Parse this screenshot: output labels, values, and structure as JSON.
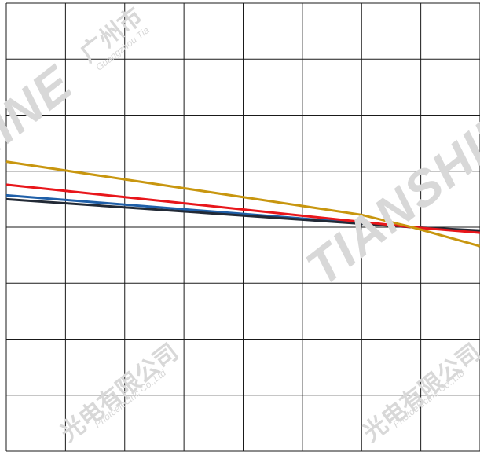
{
  "chart_data": {
    "type": "line",
    "title": "",
    "xlabel": "",
    "ylabel": "",
    "grid": true,
    "xlim": [
      0,
      8
    ],
    "ylim": [
      0,
      8
    ],
    "series": [
      {
        "color": "#1f5fa8",
        "x": [
          0,
          6.85,
          8
        ],
        "y": [
          4.57,
          4.0,
          3.92
        ]
      },
      {
        "color": "#222a36",
        "x": [
          0,
          6.85,
          8
        ],
        "y": [
          4.5,
          4.0,
          3.94
        ]
      },
      {
        "color": "#e8161b",
        "x": [
          0,
          6.85,
          8
        ],
        "y": [
          4.76,
          4.0,
          3.9
        ]
      },
      {
        "color": "#c8960f",
        "x": [
          0,
          6.0,
          6.85,
          8
        ],
        "y": [
          5.17,
          4.22,
          4.0,
          3.66
        ]
      }
    ]
  },
  "watermarks": {
    "brand": "TIANSHINE",
    "company_cn": "广州市天光电有限公司",
    "company_en": "Guangzhou Tianshine Photoelectric Co.,Ltd"
  }
}
